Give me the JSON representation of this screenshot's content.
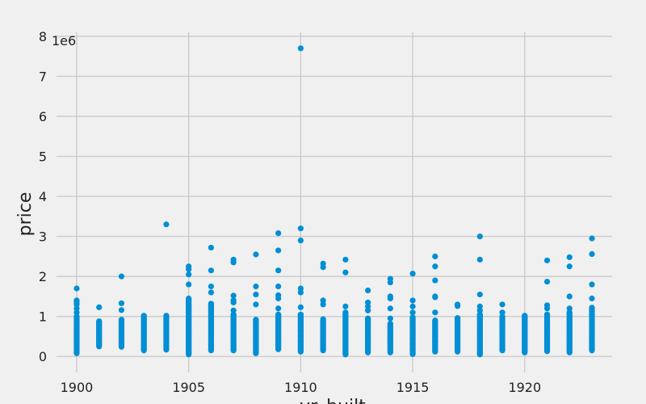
{
  "chart_data": {
    "type": "scatter",
    "xlabel": "yr_built",
    "ylabel": "price",
    "y_offset_label": "1e6",
    "xlim": [
      1899.1,
      1923.9
    ],
    "ylim": [
      -400000,
      8100000
    ],
    "x_ticks": [
      1900,
      1905,
      1910,
      1915,
      1920
    ],
    "y_ticks": [
      0,
      1000000,
      2000000,
      3000000,
      4000000,
      5000000,
      6000000,
      7000000,
      8000000
    ],
    "y_tick_labels": [
      "0",
      "1",
      "2",
      "3",
      "4",
      "5",
      "6",
      "7",
      "8"
    ],
    "grid": true,
    "color": "#008fd5",
    "columns": [
      {
        "year": 1900,
        "min": 80000,
        "max": 1000000,
        "extra": [
          1100000,
          1200000,
          1300000,
          1350000,
          1400000,
          1700000
        ]
      },
      {
        "year": 1901,
        "min": 250000,
        "max": 880000,
        "extra": [
          1230000
        ]
      },
      {
        "year": 1902,
        "min": 240000,
        "max": 920000,
        "extra": [
          1160000,
          1330000,
          2000000
        ]
      },
      {
        "year": 1903,
        "min": 150000,
        "max": 1020000,
        "extra": []
      },
      {
        "year": 1904,
        "min": 170000,
        "max": 1020000,
        "extra": [
          3300000
        ]
      },
      {
        "year": 1905,
        "min": 50000,
        "max": 1450000,
        "extra": [
          1800000,
          2050000,
          2180000,
          2250000
        ]
      },
      {
        "year": 1906,
        "min": 150000,
        "max": 1320000,
        "extra": [
          1600000,
          1750000,
          2150000,
          2720000
        ]
      },
      {
        "year": 1907,
        "min": 150000,
        "max": 1050000,
        "extra": [
          1150000,
          1350000,
          1400000,
          1520000,
          2350000,
          2420000
        ]
      },
      {
        "year": 1908,
        "min": 80000,
        "max": 920000,
        "extra": [
          1300000,
          1550000,
          1750000,
          2550000
        ]
      },
      {
        "year": 1909,
        "min": 180000,
        "max": 1050000,
        "extra": [
          1200000,
          1450000,
          1530000,
          1750000,
          2150000,
          2650000,
          3080000
        ]
      },
      {
        "year": 1910,
        "min": 120000,
        "max": 1050000,
        "extra": [
          1230000,
          1600000,
          1700000,
          2900000,
          3200000,
          7700000
        ]
      },
      {
        "year": 1911,
        "min": 150000,
        "max": 930000,
        "extra": [
          1300000,
          1400000,
          2230000,
          2320000
        ]
      },
      {
        "year": 1912,
        "min": 50000,
        "max": 1100000,
        "extra": [
          1250000,
          2100000,
          2420000
        ]
      },
      {
        "year": 1913,
        "min": 100000,
        "max": 950000,
        "extra": [
          1150000,
          1250000,
          1350000,
          1650000
        ]
      },
      {
        "year": 1914,
        "min": 100000,
        "max": 820000,
        "extra": [
          950000,
          1200000,
          1450000,
          1500000,
          1850000,
          1940000
        ]
      },
      {
        "year": 1915,
        "min": 60000,
        "max": 980000,
        "extra": [
          1100000,
          1250000,
          1400000,
          2070000
        ]
      },
      {
        "year": 1916,
        "min": 120000,
        "max": 900000,
        "extra": [
          1100000,
          1480000,
          1500000,
          1900000,
          2250000,
          2500000
        ]
      },
      {
        "year": 1917,
        "min": 120000,
        "max": 960000,
        "extra": [
          1260000,
          1300000
        ]
      },
      {
        "year": 1918,
        "min": 50000,
        "max": 1050000,
        "extra": [
          1150000,
          1250000,
          1550000,
          2420000,
          3000000
        ]
      },
      {
        "year": 1919,
        "min": 150000,
        "max": 1000000,
        "extra": [
          1100000,
          1300000
        ]
      },
      {
        "year": 1920,
        "min": 100000,
        "max": 1020000,
        "extra": []
      },
      {
        "year": 1921,
        "min": 130000,
        "max": 1050000,
        "extra": [
          1200000,
          1280000,
          1870000,
          2400000
        ]
      },
      {
        "year": 1922,
        "min": 100000,
        "max": 1100000,
        "extra": [
          1200000,
          1500000,
          2250000,
          2480000
        ]
      },
      {
        "year": 1923,
        "min": 150000,
        "max": 1220000,
        "extra": [
          1450000,
          1800000,
          2560000,
          2950000
        ]
      }
    ]
  }
}
